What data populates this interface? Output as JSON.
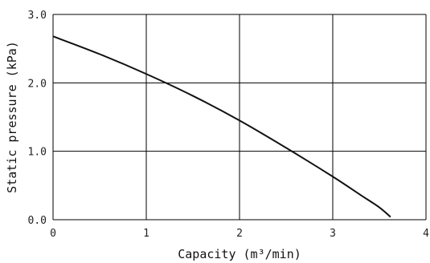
{
  "chart_data": {
    "type": "line",
    "title": "",
    "xlabel": "Capacity (m³/min)",
    "ylabel": "Static pressure (kPa)",
    "xlim": [
      0,
      4
    ],
    "ylim": [
      0.0,
      3.0
    ],
    "x_ticks": [
      "0",
      "1",
      "2",
      "3",
      "4"
    ],
    "y_ticks": [
      "0.0",
      "1.0",
      "2.0",
      "3.0"
    ],
    "grid": true,
    "legend": "none",
    "colors": {
      "line": "#111111",
      "grid": "#000000"
    },
    "series": [
      {
        "x": [
          0,
          0.5,
          1.0,
          1.5,
          2.0,
          2.5,
          3.0,
          3.3,
          3.5,
          3.62
        ],
        "y": [
          2.68,
          2.42,
          2.13,
          1.81,
          1.45,
          1.05,
          0.63,
          0.36,
          0.18,
          0.04
        ]
      }
    ]
  }
}
